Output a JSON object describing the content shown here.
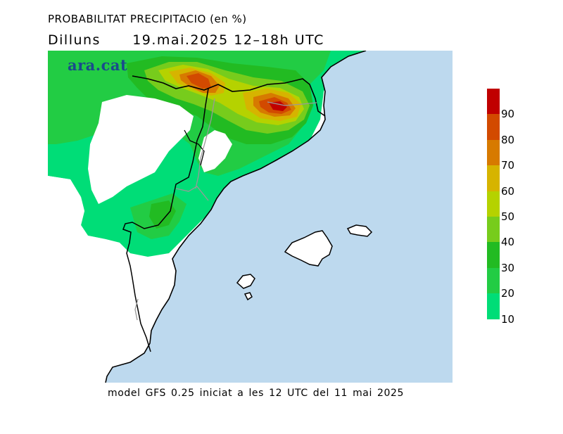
{
  "title": "PROBABILITAT PRECIPITACIO (en %)",
  "subtitle": {
    "day": "Dilluns",
    "date_range": "19.mai.2025 12–18h UTC"
  },
  "logo": "ara.cat",
  "footer": "model GFS 0.25 iniciat a les 12 UTC del 11 mai 2025",
  "legend": {
    "labels": [
      "90",
      "80",
      "70",
      "60",
      "50",
      "40",
      "30",
      "20",
      "10"
    ],
    "colors": [
      "#c00000",
      "#d24a00",
      "#d77a00",
      "#d6b400",
      "#b5d200",
      "#77cc1c",
      "#22bb22",
      "#22cc44",
      "#00dd77"
    ]
  },
  "colors": {
    "sea": "#bdd9ee",
    "land": "#ffffff",
    "coast": "#000000",
    "rivers": "#999999"
  }
}
